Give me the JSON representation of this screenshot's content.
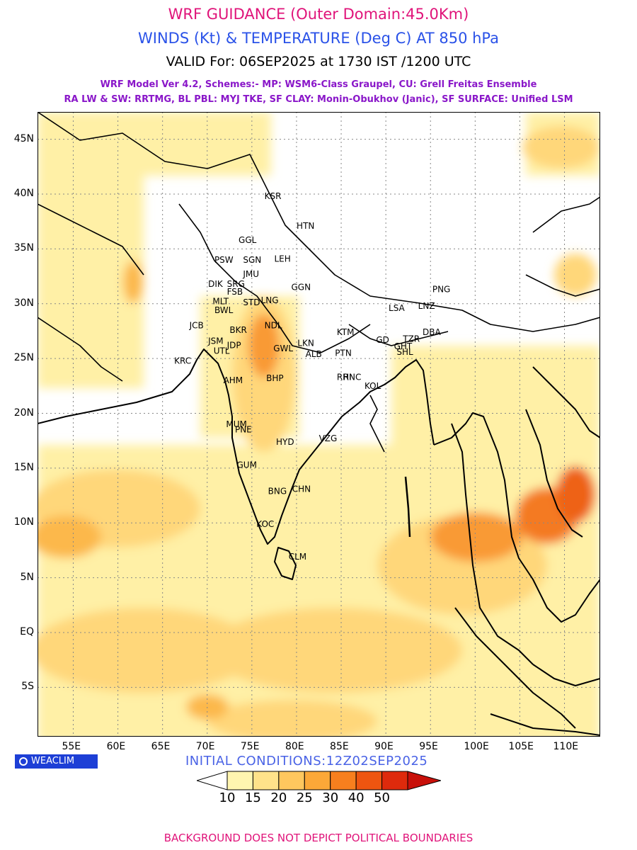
{
  "header": {
    "title": "WRF GUIDANCE (Outer Domain:45.0Km)",
    "subtitle": "WINDS (Kt) & TEMPERATURE (Deg C) AT 850 hPa",
    "valid": "VALID For: 06SEP2025 at 1730 IST /1200 UTC",
    "model_line1": "WRF Model Ver 4.2, Schemes:- MP: WSM6-Class Graupel, CU: Grell Freitas Ensemble",
    "model_line2": "RA LW & SW: RRTMG, BL PBL: MYJ TKE, SF CLAY: Monin-Obukhov (Janic), SF SURFACE: Unified LSM"
  },
  "axes": {
    "lon_ticks": [
      "55E",
      "60E",
      "65E",
      "70E",
      "75E",
      "80E",
      "85E",
      "90E",
      "95E",
      "100E",
      "105E",
      "110E"
    ],
    "lon_values": [
      55,
      60,
      65,
      70,
      75,
      80,
      85,
      90,
      95,
      100,
      105,
      110
    ],
    "lat_ticks": [
      "45N",
      "40N",
      "35N",
      "30N",
      "25N",
      "20N",
      "15N",
      "10N",
      "5N",
      "EQ",
      "5S"
    ],
    "lat_values": [
      45,
      40,
      35,
      30,
      25,
      20,
      15,
      10,
      5,
      0,
      -5
    ],
    "lon_range": [
      51,
      114
    ],
    "lat_range": [
      -9.5,
      47.5
    ]
  },
  "stations": [
    {
      "name": "KSR",
      "lon": 77.2,
      "lat": 39.8
    },
    {
      "name": "GGL",
      "lon": 74.3,
      "lat": 35.8
    },
    {
      "name": "HTN",
      "lon": 80.8,
      "lat": 37.1
    },
    {
      "name": "PSW",
      "lon": 71.6,
      "lat": 34.0
    },
    {
      "name": "SGN",
      "lon": 74.8,
      "lat": 34.0
    },
    {
      "name": "LEH",
      "lon": 78.3,
      "lat": 34.1
    },
    {
      "name": "JMU",
      "lon": 74.8,
      "lat": 32.7
    },
    {
      "name": "DIK",
      "lon": 70.9,
      "lat": 31.8
    },
    {
      "name": "SRG",
      "lon": 73.0,
      "lat": 31.8
    },
    {
      "name": "GGN",
      "lon": 80.2,
      "lat": 31.5
    },
    {
      "name": "FSB",
      "lon": 73.0,
      "lat": 31.1
    },
    {
      "name": "MLT",
      "lon": 71.4,
      "lat": 30.2
    },
    {
      "name": "BWL",
      "lon": 71.6,
      "lat": 29.4
    },
    {
      "name": "STD",
      "lon": 74.8,
      "lat": 30.1
    },
    {
      "name": "LNG",
      "lon": 76.8,
      "lat": 30.3
    },
    {
      "name": "PNG",
      "lon": 96.0,
      "lat": 31.3
    },
    {
      "name": "LSA",
      "lon": 91.1,
      "lat": 29.6
    },
    {
      "name": "LNZ",
      "lon": 94.4,
      "lat": 29.8
    },
    {
      "name": "JCB",
      "lon": 68.8,
      "lat": 28.0
    },
    {
      "name": "BKR",
      "lon": 73.3,
      "lat": 27.6
    },
    {
      "name": "NDL",
      "lon": 77.2,
      "lat": 28.0
    },
    {
      "name": "KTM",
      "lon": 85.3,
      "lat": 27.4
    },
    {
      "name": "GD",
      "lon": 89.7,
      "lat": 26.7
    },
    {
      "name": "TZR",
      "lon": 92.7,
      "lat": 26.8
    },
    {
      "name": "DBA",
      "lon": 94.9,
      "lat": 27.4
    },
    {
      "name": "JSM",
      "lon": 70.9,
      "lat": 26.6
    },
    {
      "name": "JDP",
      "lon": 73.0,
      "lat": 26.2
    },
    {
      "name": "GWL",
      "lon": 78.2,
      "lat": 25.9
    },
    {
      "name": "LKN",
      "lon": 80.9,
      "lat": 26.4
    },
    {
      "name": "GHT",
      "lon": 91.7,
      "lat": 26.1
    },
    {
      "name": "SHL",
      "lon": 92.0,
      "lat": 25.6
    },
    {
      "name": "UTL",
      "lon": 71.5,
      "lat": 25.7
    },
    {
      "name": "ALB",
      "lon": 81.8,
      "lat": 25.4
    },
    {
      "name": "PTN",
      "lon": 85.1,
      "lat": 25.5
    },
    {
      "name": "KRC",
      "lon": 67.1,
      "lat": 24.8
    },
    {
      "name": "AHM",
      "lon": 72.6,
      "lat": 23.0
    },
    {
      "name": "BHP",
      "lon": 77.4,
      "lat": 23.2
    },
    {
      "name": "RHI",
      "lon": 85.3,
      "lat": 23.3
    },
    {
      "name": "RNC",
      "lon": 86.0,
      "lat": 23.3
    },
    {
      "name": "KOL",
      "lon": 88.4,
      "lat": 22.5
    },
    {
      "name": "MUM",
      "lon": 72.9,
      "lat": 19.0
    },
    {
      "name": "PNE",
      "lon": 73.9,
      "lat": 18.5
    },
    {
      "name": "HYD",
      "lon": 78.5,
      "lat": 17.4
    },
    {
      "name": "VZG",
      "lon": 83.3,
      "lat": 17.7
    },
    {
      "name": "GUM",
      "lon": 74.1,
      "lat": 15.3
    },
    {
      "name": "BNG",
      "lon": 77.6,
      "lat": 12.9
    },
    {
      "name": "CHN",
      "lon": 80.3,
      "lat": 13.1
    },
    {
      "name": "KOC",
      "lon": 76.3,
      "lat": 9.9
    },
    {
      "name": "CLM",
      "lon": 79.9,
      "lat": 6.9
    }
  ],
  "initial_conditions": "INITIAL CONDITIONS:12Z02SEP2025",
  "badge": "WEACLIM",
  "colorbar": {
    "labels": [
      "10",
      "15",
      "20",
      "25",
      "30",
      "40",
      "50"
    ],
    "colors": [
      "#ffffff",
      "#fff5b0",
      "#ffe28a",
      "#ffc75e",
      "#fca838",
      "#f77f1e",
      "#ee5510",
      "#de2a0c",
      "#c8100a"
    ]
  },
  "footer": "BACKGROUND DOES NOT DEPICT POLITICAL BOUNDARIES"
}
